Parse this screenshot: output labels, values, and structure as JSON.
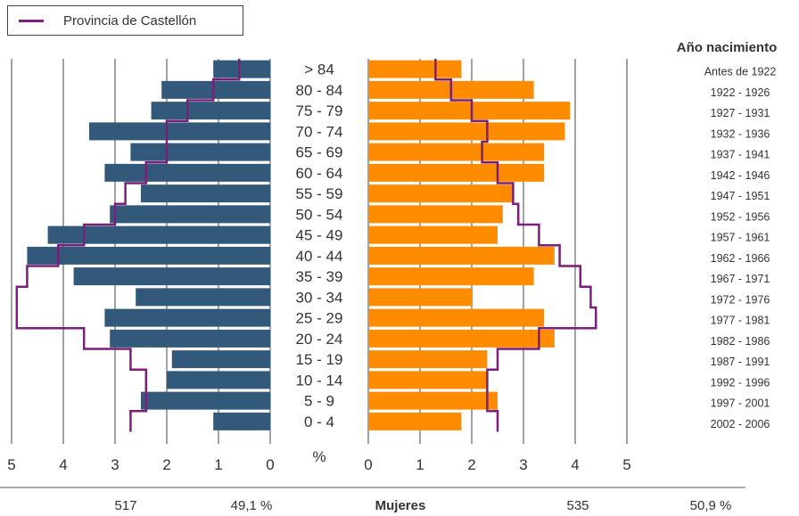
{
  "legend": {
    "label": "Provincia de Castellón"
  },
  "birth_year_header": "Año nacimiento",
  "footer": {
    "men_count": "517",
    "men_pct": "49,1 %",
    "women_label": "Mujeres",
    "women_count": "535",
    "women_pct": "50,9 %"
  },
  "colors": {
    "men_bar": "#33597a",
    "women_bar": "#ff8c00",
    "province_line": "#7b1f7a",
    "grid": "#444444",
    "text": "#333333"
  },
  "chart_data": {
    "type": "bar",
    "orientation": "horizontal-population-pyramid",
    "xlabel": "%",
    "xlim": [
      0,
      5
    ],
    "x_ticks": [
      "0",
      "1",
      "2",
      "3",
      "4",
      "5"
    ],
    "categories": [
      "> 84",
      "80 - 84",
      "75 - 79",
      "70 - 74",
      "65 - 69",
      "60 - 64",
      "55 - 59",
      "50 - 54",
      "45 - 49",
      "40 - 44",
      "35 - 39",
      "30 - 34",
      "25 - 29",
      "20 - 24",
      "15 - 19",
      "10 - 14",
      "5 - 9",
      "0 - 4"
    ],
    "birth_years": [
      "Antes de 1922",
      "1922 - 1926",
      "1927 - 1931",
      "1932 - 1936",
      "1937 - 1941",
      "1942 - 1946",
      "1947 - 1951",
      "1952 - 1956",
      "1957 - 1961",
      "1962 - 1966",
      "1967 - 1971",
      "1972 - 1976",
      "1977 - 1981",
      "1982 - 1986",
      "1987 - 1991",
      "1992 - 1996",
      "1997 - 2001",
      "2002 - 2006"
    ],
    "series": [
      {
        "values": [
          1.1,
          2.1,
          2.3,
          3.5,
          2.7,
          3.2,
          2.5,
          3.1,
          4.3,
          4.7,
          3.8,
          2.6,
          3.2,
          3.1,
          1.9,
          2.0,
          2.5,
          1.1
        ]
      },
      {
        "values": [
          1.8,
          3.2,
          3.9,
          3.8,
          3.4,
          3.4,
          2.8,
          2.6,
          2.5,
          3.6,
          3.2,
          2.0,
          3.4,
          3.6,
          2.3,
          2.3,
          2.5,
          1.8
        ]
      },
      {
        "name": "Provincia de Castellón",
        "side": "left",
        "values": [
          0.6,
          1.1,
          1.6,
          2.0,
          2.0,
          2.4,
          2.8,
          3.0,
          3.6,
          4.1,
          4.7,
          4.9,
          4.9,
          3.6,
          2.7,
          2.4,
          2.4,
          2.7
        ]
      },
      {
        "name": "Provincia de Castellón",
        "side": "right",
        "values": [
          1.3,
          1.6,
          2.0,
          2.3,
          2.2,
          2.5,
          2.8,
          2.9,
          3.3,
          3.7,
          4.1,
          4.3,
          4.4,
          3.3,
          2.5,
          2.3,
          2.3,
          2.5
        ]
      }
    ]
  }
}
